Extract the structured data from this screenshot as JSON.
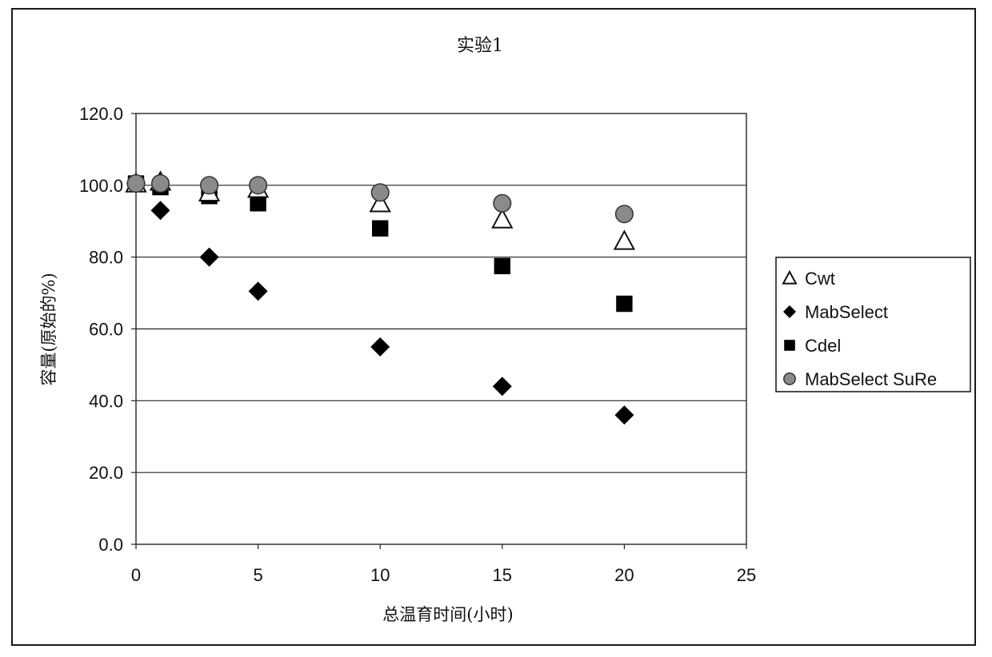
{
  "chart_data": {
    "type": "scatter",
    "title": "实验1",
    "xlabel": "总温育时间(小时)",
    "ylabel": "容量(原始的%)",
    "xlim": [
      0,
      25
    ],
    "ylim": [
      0,
      120
    ],
    "xticks": [
      0,
      5,
      10,
      15,
      20,
      25
    ],
    "yticks": [
      0,
      20,
      40,
      60,
      80,
      100,
      120
    ],
    "xtick_labels": [
      "0",
      "5",
      "10",
      "15",
      "20",
      "25"
    ],
    "ytick_labels": [
      "0.0",
      "20.0",
      "40.0",
      "60.0",
      "80.0",
      "100.0",
      "120.0"
    ],
    "grid": "horizontal",
    "legend_position": "right",
    "series": [
      {
        "name": "Cwt",
        "marker": "triangle-open",
        "color": "#111111",
        "x": [
          0,
          1,
          3,
          5,
          10,
          15,
          20
        ],
        "y": [
          100.5,
          101,
          98,
          99,
          95,
          90.5,
          84.5
        ]
      },
      {
        "name": "MabSelect",
        "marker": "diamond",
        "color": "#000000",
        "x": [
          0,
          1,
          3,
          5,
          10,
          15,
          20
        ],
        "y": [
          100.5,
          93,
          80,
          70.5,
          55,
          44,
          36
        ]
      },
      {
        "name": "Cdel",
        "marker": "square",
        "color": "#000000",
        "x": [
          0,
          1,
          3,
          5,
          10,
          15,
          20
        ],
        "y": [
          100.5,
          99.5,
          97,
          95,
          88,
          77.5,
          67
        ]
      },
      {
        "name": "MabSelect SuRe",
        "marker": "circle",
        "color": "#8a8a8a",
        "x": [
          0,
          1,
          3,
          5,
          10,
          15,
          20
        ],
        "y": [
          100.5,
          100.5,
          100,
          100,
          98,
          95,
          92
        ]
      }
    ]
  }
}
